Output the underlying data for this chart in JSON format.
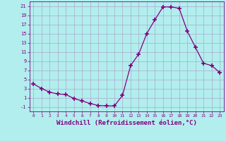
{
  "x": [
    0,
    1,
    2,
    3,
    4,
    5,
    6,
    7,
    8,
    9,
    10,
    11,
    12,
    13,
    14,
    15,
    16,
    17,
    18,
    19,
    20,
    21,
    22,
    23
  ],
  "y": [
    4.0,
    3.0,
    2.2,
    1.8,
    1.7,
    0.8,
    0.3,
    -0.3,
    -0.7,
    -0.8,
    -0.8,
    1.5,
    8.0,
    10.5,
    15.0,
    18.0,
    20.8,
    20.8,
    20.5,
    15.5,
    12.0,
    8.5,
    8.0,
    6.5
  ],
  "line_color": "#800080",
  "marker": "+",
  "marker_size": 4,
  "marker_linewidth": 1.2,
  "background_color": "#b2eeee",
  "grid_color": "#aaaacc",
  "xlabel": "Windchill (Refroidissement éolien,°C)",
  "xlabel_fontsize": 6.5,
  "ytick_labels": [
    "-1",
    "1",
    "3",
    "5",
    "7",
    "9",
    "11",
    "13",
    "15",
    "17",
    "19",
    "21"
  ],
  "ytick_values": [
    -1,
    1,
    3,
    5,
    7,
    9,
    11,
    13,
    15,
    17,
    19,
    21
  ],
  "xtick_labels": [
    "0",
    "1",
    "2",
    "3",
    "4",
    "5",
    "6",
    "7",
    "8",
    "9",
    "10",
    "11",
    "12",
    "13",
    "14",
    "15",
    "16",
    "17",
    "18",
    "19",
    "20",
    "21",
    "22",
    "23"
  ],
  "xlim": [
    -0.5,
    23.5
  ],
  "ylim": [
    -2,
    22
  ]
}
